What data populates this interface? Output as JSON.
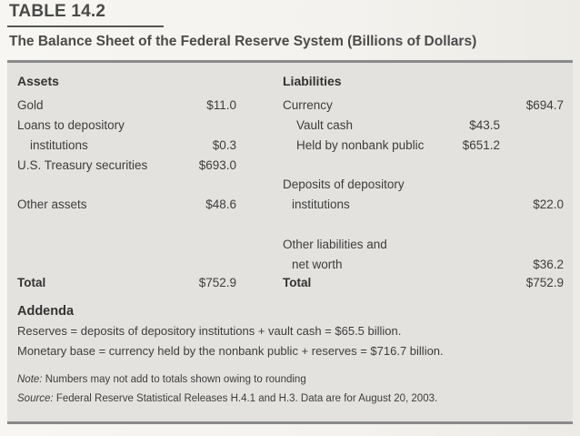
{
  "header": {
    "table_label": "TABLE 14.2",
    "caption": "The Balance Sheet of the Federal Reserve System (Billions of Dollars)"
  },
  "assets": {
    "heading": "Assets",
    "items": [
      {
        "label": "Gold",
        "value": "$11.0"
      },
      {
        "label_line1": "Loans to depository",
        "label_line2": "institutions",
        "value": "$0.3"
      },
      {
        "label": "U.S. Treasury securities",
        "value": "$693.0"
      },
      {
        "label": "Other assets",
        "value": "$48.6"
      }
    ],
    "total_label": "Total",
    "total_value": "$752.9"
  },
  "liabilities": {
    "heading": "Liabilities",
    "currency": {
      "label": "Currency",
      "value": "$694.7",
      "vault_cash_label": "Vault cash",
      "vault_cash_value": "$43.5",
      "held_label": "Held by nonbank public",
      "held_value": "$651.2"
    },
    "deposits": {
      "label_line1": "Deposits of depository",
      "label_line2": "institutions",
      "value": "$22.0"
    },
    "other": {
      "label_line1": "Other liabilities and",
      "label_line2": "net worth",
      "value": "$36.2"
    },
    "total_label": "Total",
    "total_value": "$752.9"
  },
  "addenda": {
    "title": "Addenda",
    "line1": "Reserves = deposits of depository institutions + vault cash = $65.5 billion.",
    "line2": "Monetary base = currency held by the nonbank public + reserves = $716.7 billion."
  },
  "notes": {
    "note_label": "Note:",
    "note_text": " Numbers may not add to totals shown owing to rounding",
    "source_label": "Source:",
    "source_text": " Federal Reserve Statistical Releases H.4.1 and H.3. Data are for August 20, 2003."
  }
}
